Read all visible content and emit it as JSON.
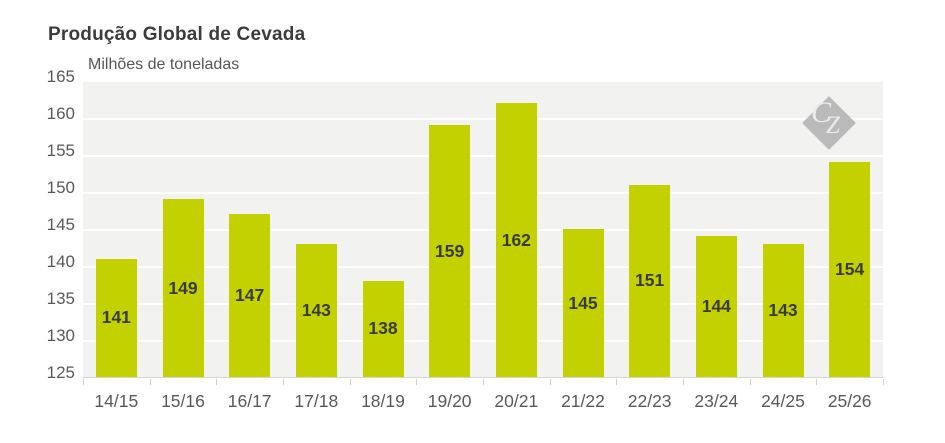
{
  "header": {
    "title": "Produção Global de Cevada",
    "unit_label": "Milhões de toneladas"
  },
  "watermark": {
    "letter_c": "C",
    "letter_z": "Z",
    "diamond_color": "#b5b5b5",
    "letter_color": "#ececec"
  },
  "chart_data": {
    "type": "bar",
    "title": "Produção Global de Cevada",
    "ylabel": "Milhões de toneladas",
    "xlabel": "",
    "categories": [
      "14/15",
      "15/16",
      "16/17",
      "17/18",
      "18/19",
      "19/20",
      "20/21",
      "21/22",
      "22/23",
      "23/24",
      "24/25",
      "25/26"
    ],
    "values": [
      141,
      149,
      147,
      143,
      138,
      159,
      162,
      145,
      151,
      144,
      143,
      154
    ],
    "data_labels_visible": true,
    "ylim": [
      125,
      165
    ],
    "yticks": [
      125,
      130,
      135,
      140,
      145,
      150,
      155,
      160,
      165
    ],
    "grid": "horizontal",
    "legend": "none",
    "bar_color": "#c3d100",
    "plot_bg_color": "#f2f2f0",
    "gridline_color": "#ffffff",
    "axis_text_color": "#595959",
    "value_label_color": "#3a3a3a"
  }
}
